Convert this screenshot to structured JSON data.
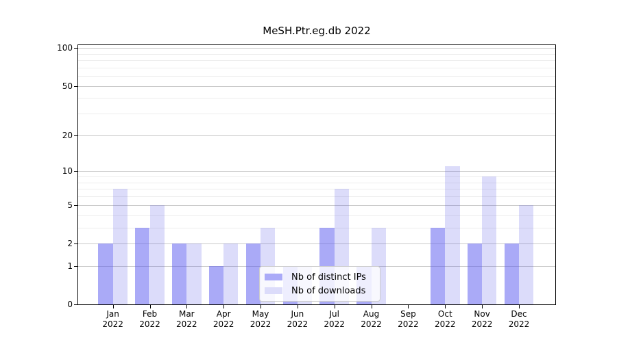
{
  "title": "MeSH.Ptr.eg.db 2022",
  "chart_data": {
    "type": "bar",
    "title": "MeSH.Ptr.eg.db 2022",
    "categories": [
      "Jan",
      "Feb",
      "Mar",
      "Apr",
      "May",
      "Jun",
      "Jul",
      "Aug",
      "Sep",
      "Oct",
      "Nov",
      "Dec"
    ],
    "year_label": "2022",
    "series": [
      {
        "name": "Nb of distinct IPs",
        "color": "#aaaaf8",
        "fill_rgba": "rgba(86,86,240,0.5)",
        "values": [
          2,
          3,
          2,
          1,
          2,
          1,
          3,
          1,
          0,
          3,
          2,
          2
        ]
      },
      {
        "name": "Nb of downloads",
        "color": "#dcdcfa",
        "fill_rgba": "rgba(80,80,230,0.2)",
        "values": [
          7,
          5,
          2,
          2,
          3,
          1,
          7,
          3,
          0,
          11,
          9,
          5
        ]
      }
    ],
    "y_axis": {
      "scale": "log10(1+v)",
      "major_ticks": [
        0,
        1,
        2,
        5,
        10,
        20,
        50,
        100
      ],
      "tick_labels": [
        "0",
        "1",
        "2",
        "5",
        "10",
        "20",
        "50",
        "100"
      ],
      "minor_gridlines": [
        3,
        4,
        6,
        7,
        8,
        9,
        30,
        40,
        60,
        70,
        80,
        90
      ]
    },
    "x_axis": {
      "grid": false
    },
    "legend": {
      "position": "lower-center-inside",
      "entries": [
        "Nb of distinct IPs",
        "Nb of downloads"
      ]
    }
  }
}
